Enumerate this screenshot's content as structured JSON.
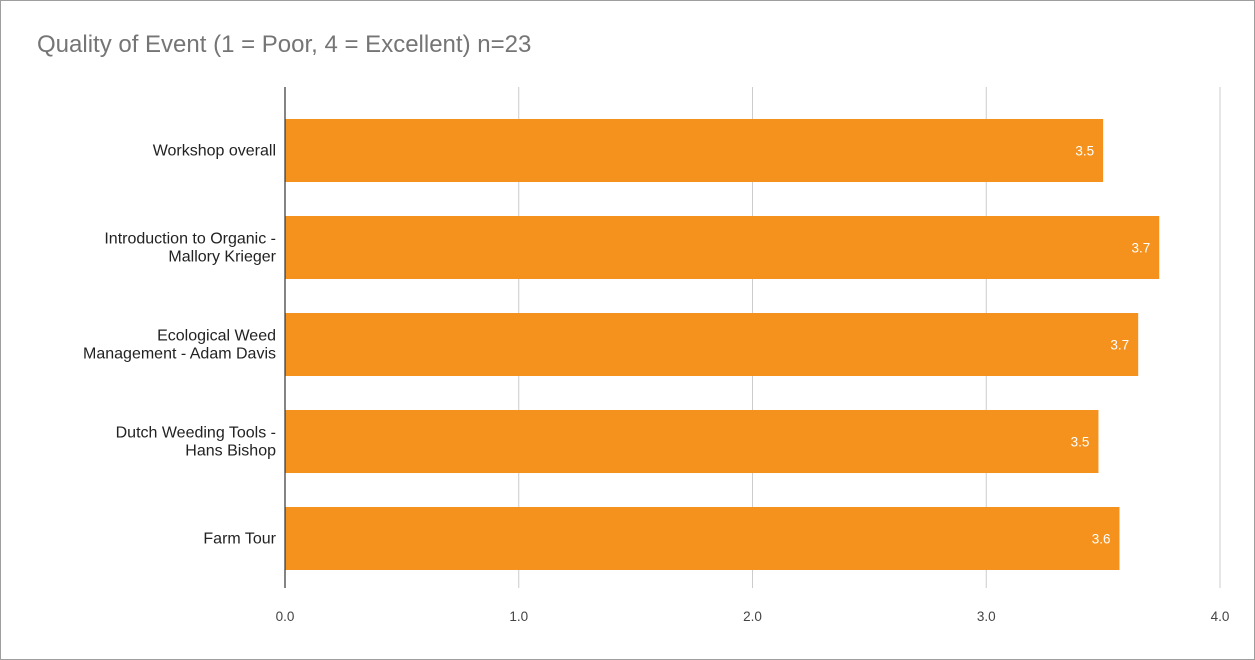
{
  "chart_data": {
    "type": "bar",
    "orientation": "horizontal",
    "title": "Quality of Event (1 = Poor, 4 = Excellent) n=23",
    "xlabel": "",
    "ylabel": "",
    "categories": [
      [
        "Workshop overall"
      ],
      [
        "Introduction to Organic -",
        "Mallory Krieger"
      ],
      [
        "Ecological Weed",
        "Management - Adam Davis"
      ],
      [
        "Dutch Weeding Tools -",
        "Hans Bishop"
      ],
      [
        "Farm Tour"
      ]
    ],
    "values": [
      3.5,
      3.74,
      3.65,
      3.48,
      3.57
    ],
    "value_labels": [
      "3.5",
      "3.7",
      "3.7",
      "3.5",
      "3.6"
    ],
    "xlim": [
      0,
      4
    ],
    "x_ticks": [
      0,
      1,
      2,
      3,
      4
    ],
    "x_tick_labels": [
      "0.0",
      "1.0",
      "2.0",
      "3.0",
      "4.0"
    ],
    "grid": "vertical",
    "legend": "none",
    "colors": {
      "bar": "#f5921e",
      "grid": "#cccccc",
      "axis": "#333333",
      "title": "#757575"
    }
  }
}
